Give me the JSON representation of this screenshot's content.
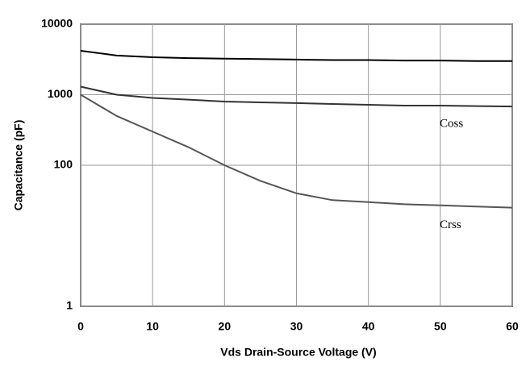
{
  "chart_data": {
    "type": "line",
    "x_label": "Vds Drain-Source Voltage (V)",
    "y_label": "Capacitance (pF)",
    "x": [
      0,
      5,
      10,
      15,
      20,
      25,
      30,
      35,
      40,
      45,
      50,
      55,
      60
    ],
    "series": [
      {
        "color": "#000000",
        "values": [
          4200,
          3600,
          3400,
          3300,
          3250,
          3200,
          3150,
          3100,
          3100,
          3050,
          3050,
          3000,
          3000
        ]
      },
      {
        "name": "Coss",
        "color": "#333333",
        "values": [
          1300,
          1000,
          900,
          850,
          800,
          780,
          760,
          740,
          720,
          700,
          700,
          690,
          680
        ]
      },
      {
        "name": "Crss",
        "color": "#555555",
        "values": [
          1000,
          500,
          300,
          180,
          100,
          60,
          40,
          32,
          30,
          28,
          27,
          26,
          25
        ]
      }
    ],
    "xlim": [
      0,
      60
    ],
    "xticks": [
      0,
      10,
      20,
      30,
      40,
      50,
      60
    ],
    "ylim": [
      1,
      10000
    ],
    "yticks": [
      1,
      100,
      1000,
      10000
    ],
    "log_y": true,
    "grid": true
  }
}
